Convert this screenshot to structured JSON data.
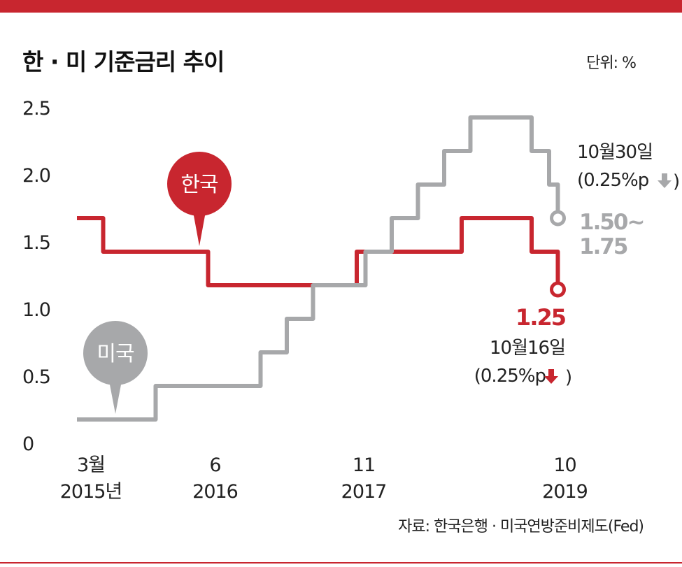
{
  "title": "한 · 미 기준금리 추이",
  "unit": "단위: %",
  "source": "자료: 한국은행 · 미국연방준비제도(Fed)",
  "colors": {
    "korea": "#c8262f",
    "us": "#a7a8aa",
    "accent_bar": "#c8262f"
  },
  "chart_data": {
    "type": "line",
    "step": true,
    "title": "한 · 미 기준금리 추이",
    "ylim": [
      0,
      2.5
    ],
    "y_ticks": [
      "0",
      "0.5",
      "1.0",
      "1.5",
      "2.0",
      "2.5"
    ],
    "y_tick_values": [
      0,
      0.5,
      1.0,
      1.5,
      2.0,
      2.5
    ],
    "x_ticks": [
      {
        "date": "2015-03",
        "line1": "3월",
        "line2": "2015년"
      },
      {
        "date": "2016-06",
        "line1": "6",
        "line2": "2016"
      },
      {
        "date": "2017-11",
        "line1": "11",
        "line2": "2017"
      },
      {
        "date": "2019-10",
        "line1": "10",
        "line2": "2019"
      }
    ],
    "grid": false,
    "series": [
      {
        "name": "한국",
        "color": "#c8262f",
        "points": [
          [
            "2015-03",
            1.75
          ],
          [
            "2015-06",
            1.5
          ],
          [
            "2016-06",
            1.25
          ],
          [
            "2017-11",
            1.5
          ],
          [
            "2018-11",
            1.75
          ],
          [
            "2019-07",
            1.5
          ],
          [
            "2019-10",
            1.25
          ]
        ],
        "end_label": "1.25",
        "end_note": [
          "10월16일",
          "(0.25%p"
        ]
      },
      {
        "name": "미국",
        "color": "#a7a8aa",
        "points": [
          [
            "2015-03",
            0.25
          ],
          [
            "2015-12",
            0.5
          ],
          [
            "2016-12",
            0.75
          ],
          [
            "2017-03",
            1.0
          ],
          [
            "2017-06",
            1.25
          ],
          [
            "2017-12",
            1.5
          ],
          [
            "2018-03",
            1.75
          ],
          [
            "2018-06",
            2.0
          ],
          [
            "2018-09",
            2.25
          ],
          [
            "2018-12",
            2.5
          ],
          [
            "2019-07",
            2.25
          ],
          [
            "2019-09",
            2.0
          ],
          [
            "2019-10",
            1.75
          ]
        ],
        "end_label": [
          "1.50~",
          "1.75"
        ],
        "end_note": [
          "10월30일",
          "(0.25%p"
        ]
      }
    ]
  }
}
